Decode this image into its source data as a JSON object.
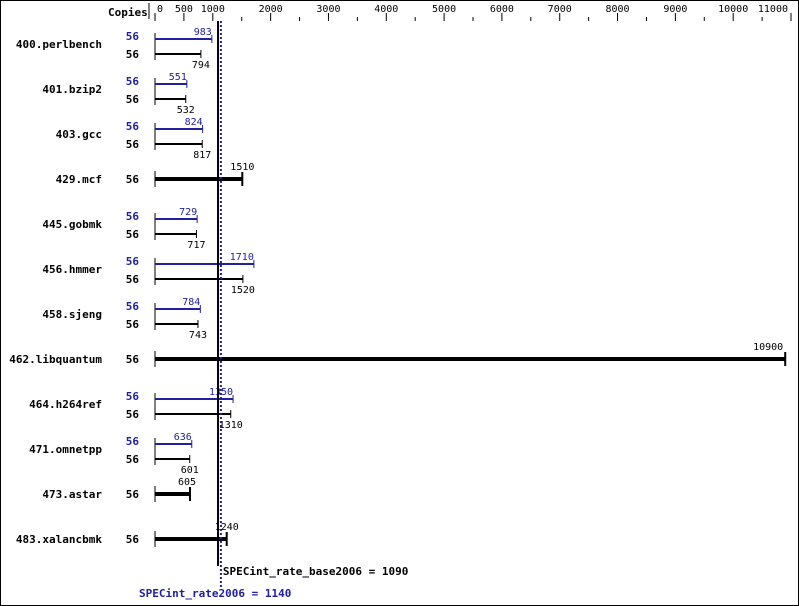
{
  "chart_data": {
    "type": "bar",
    "orientation": "horizontal",
    "copies_header": "Copies",
    "xlim": [
      0,
      11000
    ],
    "tick_labels": [
      "0",
      "500",
      "1000",
      "2000",
      "3000",
      "4000",
      "5000",
      "6000",
      "7000",
      "8000",
      "9000",
      "10000",
      "11000"
    ],
    "colors": {
      "base": "#000000",
      "peak": "#2020a0"
    },
    "benchmarks": [
      {
        "name": "400.perlbench",
        "peak_copies": "56",
        "peak": 983,
        "base_copies": "56",
        "base": 794
      },
      {
        "name": "401.bzip2",
        "peak_copies": "56",
        "peak": 551,
        "base_copies": "56",
        "base": 532
      },
      {
        "name": "403.gcc",
        "peak_copies": "56",
        "peak": 824,
        "base_copies": "56",
        "base": 817
      },
      {
        "name": "429.mcf",
        "peak_copies": null,
        "peak": null,
        "base_copies": "56",
        "base": 1510
      },
      {
        "name": "445.gobmk",
        "peak_copies": "56",
        "peak": 729,
        "base_copies": "56",
        "base": 717
      },
      {
        "name": "456.hmmer",
        "peak_copies": "56",
        "peak": 1710,
        "base_copies": "56",
        "base": 1520
      },
      {
        "name": "458.sjeng",
        "peak_copies": "56",
        "peak": 784,
        "base_copies": "56",
        "base": 743
      },
      {
        "name": "462.libquantum",
        "peak_copies": null,
        "peak": null,
        "base_copies": "56",
        "base": 10900
      },
      {
        "name": "464.h264ref",
        "peak_copies": "56",
        "peak": 1350,
        "base_copies": "56",
        "base": 1310
      },
      {
        "name": "471.omnetpp",
        "peak_copies": "56",
        "peak": 636,
        "base_copies": "56",
        "base": 601
      },
      {
        "name": "473.astar",
        "peak_copies": null,
        "peak": null,
        "base_copies": "56",
        "base": 605
      },
      {
        "name": "483.xalancbmk",
        "peak_copies": null,
        "peak": null,
        "base_copies": "56",
        "base": 1240
      }
    ],
    "base_metric": {
      "label": "SPECint_rate_base2006 = 1090",
      "value": 1090
    },
    "peak_metric": {
      "label": "SPECint_rate2006 = 1140",
      "value": 1140
    }
  }
}
